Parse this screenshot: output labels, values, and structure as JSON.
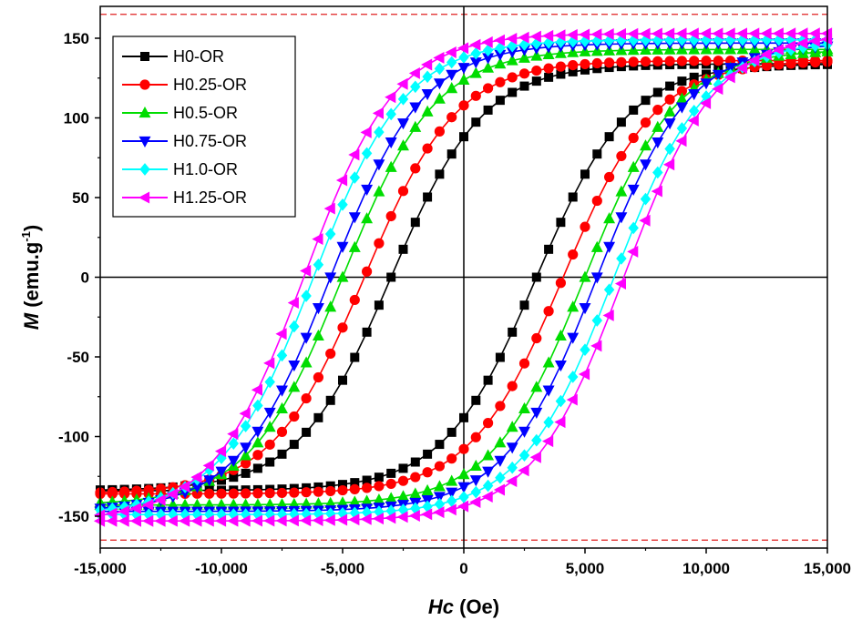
{
  "chart_data": {
    "type": "line",
    "xlabel_var": "Hc",
    "xlabel_unit": " (Oe)",
    "ylabel_var": "M",
    "ylabel_unit": " (emu.g",
    "ylabel_sup": "-1",
    "ylabel_close": ")",
    "xlim": [
      -15000,
      15000
    ],
    "ylim": [
      -170,
      170
    ],
    "x_ticks": [
      -15000,
      -10000,
      -5000,
      0,
      5000,
      10000,
      15000
    ],
    "x_tick_labels": [
      "-15,000",
      "-10,000",
      "-5,000",
      "0",
      "5,000",
      "10,000",
      "15,000"
    ],
    "y_ticks": [
      -150,
      -100,
      -50,
      0,
      50,
      100,
      150
    ],
    "y_tick_labels": [
      "-150",
      "-100",
      "-50",
      "0",
      "50",
      "100",
      "150"
    ],
    "reference_lines": [
      -165,
      165
    ],
    "legend_position": "top-left",
    "grid": false,
    "series": [
      {
        "name": "H0-OR",
        "color": "#000000",
        "marker": "square",
        "Ms": 134,
        "Hc": 3000
      },
      {
        "name": "H0.25-OR",
        "color": "#ff0000",
        "marker": "circle",
        "Ms": 136,
        "Hc": 4100
      },
      {
        "name": "H0.5-OR",
        "color": "#00dd00",
        "marker": "triangle-up",
        "Ms": 143,
        "Hc": 5000
      },
      {
        "name": "H0.75-OR",
        "color": "#0000ff",
        "marker": "triangle-down",
        "Ms": 147,
        "Hc": 5500
      },
      {
        "name": "H1.0-OR",
        "color": "#00ffff",
        "marker": "diamond",
        "Ms": 149,
        "Hc": 6200
      },
      {
        "name": "H1.25-OR",
        "color": "#ff00ff",
        "marker": "triangle-left",
        "Ms": 153,
        "Hc": 6600
      }
    ]
  }
}
